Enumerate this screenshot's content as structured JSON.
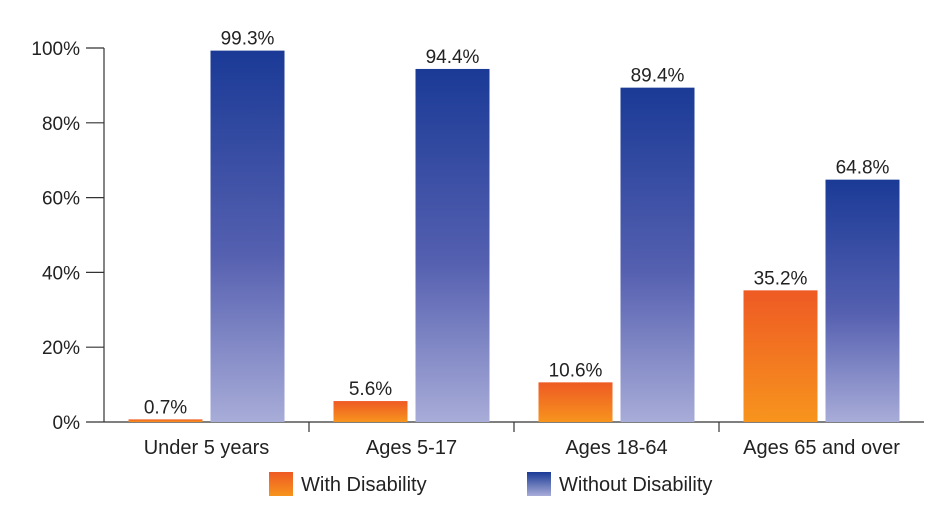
{
  "chart_data": {
    "type": "bar",
    "categories": [
      "Under 5 years",
      "Ages 5-17",
      "Ages 18-64",
      "Ages 65 and over"
    ],
    "series": [
      {
        "name": "With Disability",
        "values": [
          0.7,
          5.6,
          10.6,
          35.2
        ],
        "labels": [
          "0.7%",
          "5.6%",
          "10.6%",
          "35.2%"
        ],
        "color_top": "#ee5a24",
        "color_bottom": "#f7941d"
      },
      {
        "name": "Without Disability",
        "values": [
          99.3,
          94.4,
          89.4,
          64.8
        ],
        "labels": [
          "99.3%",
          "94.4%",
          "89.4%",
          "64.8%"
        ],
        "color_top": "#1a3a96",
        "color_bottom": "#a8acd8"
      }
    ],
    "yticks": [
      "0%",
      "20%",
      "40%",
      "60%",
      "80%",
      "100%"
    ],
    "ylim": [
      0,
      100
    ],
    "legend_position": "bottom",
    "grid": false
  }
}
